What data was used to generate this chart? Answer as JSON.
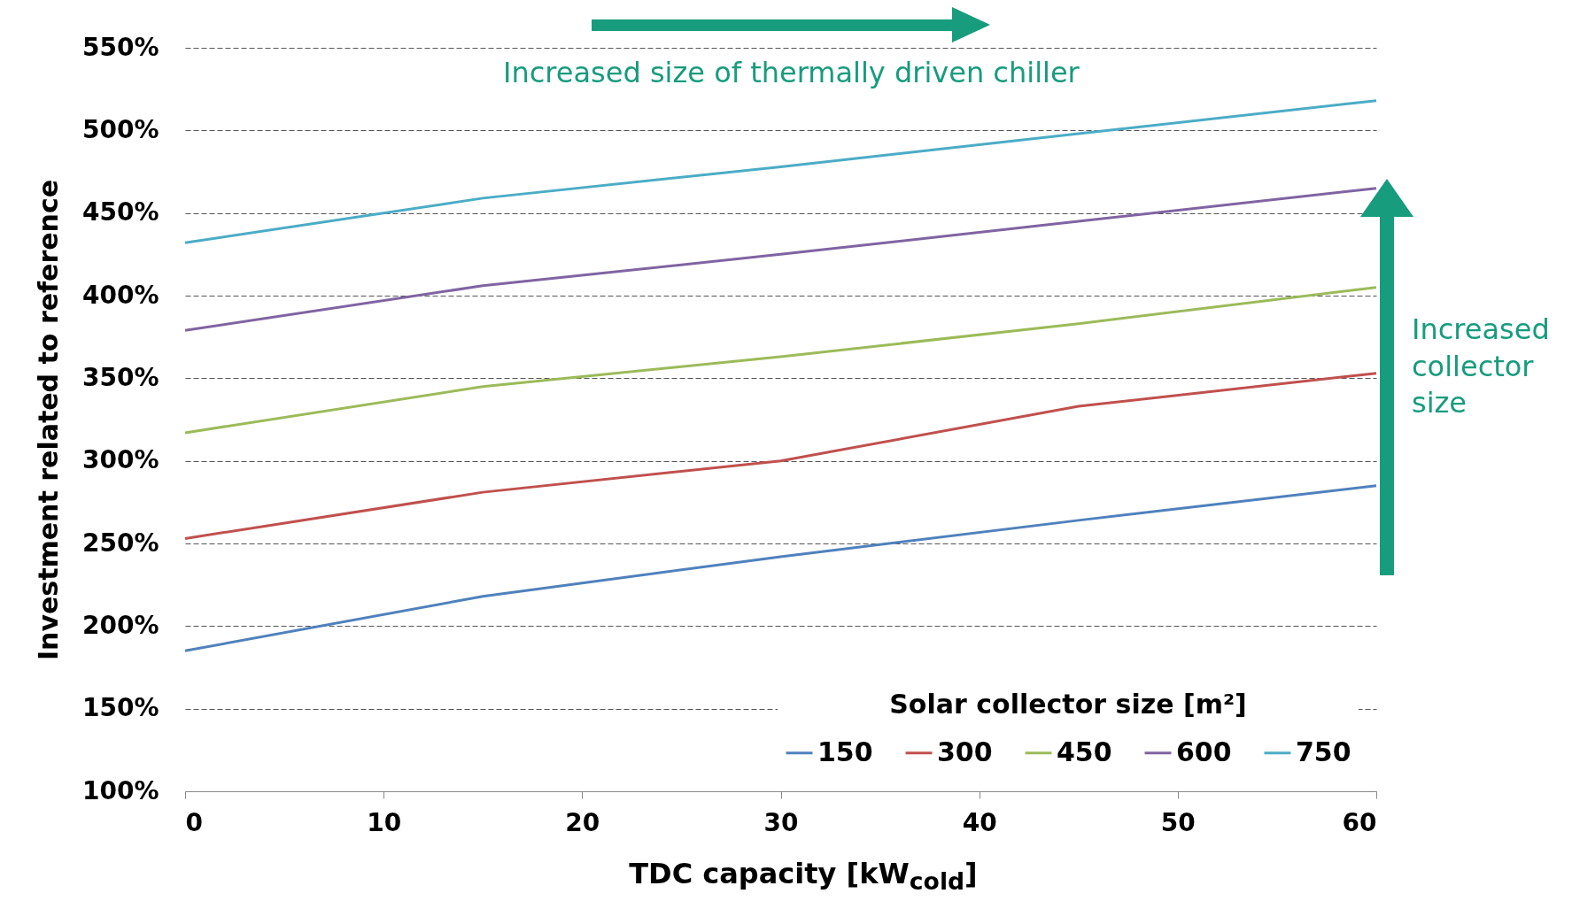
{
  "chart_data": {
    "type": "line",
    "xlabel": "TDC capacity [kW$_{cold}$]",
    "ylabel": "Investment related to reference",
    "legend_title": "Solar collector size [m²]",
    "legend": "bottom right",
    "grid": "y",
    "marker": "none",
    "line_style": "solid",
    "x": [
      0,
      15,
      30,
      45,
      60
    ],
    "series": [
      {
        "name": "150",
        "color": "#4f81bd",
        "values": [
          185,
          218,
          242,
          264,
          285
        ]
      },
      {
        "name": "300",
        "color": "#c0504d",
        "values": [
          253,
          281,
          300,
          333,
          353
        ]
      },
      {
        "name": "450",
        "color": "#9bbb59",
        "values": [
          317,
          345,
          363,
          383,
          405
        ]
      },
      {
        "name": "600",
        "color": "#8064a2",
        "values": [
          379,
          406,
          425,
          445,
          465
        ]
      },
      {
        "name": "750",
        "color": "#4bacc6",
        "values": [
          432,
          459,
          478,
          498,
          518
        ]
      }
    ],
    "xlim": [
      0,
      60
    ],
    "xticks": [
      0,
      10,
      20,
      30,
      40,
      50,
      60
    ],
    "ylim": [
      100,
      550
    ],
    "yticks": [
      {
        "value": 100,
        "label": "100%"
      },
      {
        "value": 150,
        "label": "150%"
      },
      {
        "value": 200,
        "label": "200%"
      },
      {
        "value": 250,
        "label": "250%"
      },
      {
        "value": 300,
        "label": "300%"
      },
      {
        "value": 350,
        "label": "350%"
      },
      {
        "value": 400,
        "label": "400%"
      },
      {
        "value": 450,
        "label": "450%"
      },
      {
        "value": 500,
        "label": "500%"
      },
      {
        "value": 550,
        "label": "550%"
      }
    ],
    "annotations": [
      "Increased size of thermally driven chiller",
      "Increased collector size"
    ]
  }
}
